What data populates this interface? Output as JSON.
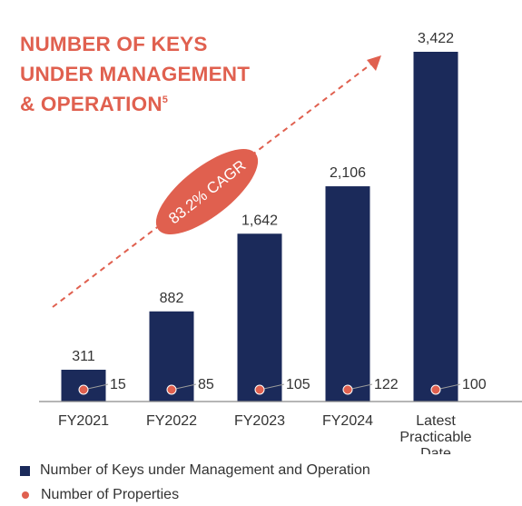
{
  "title": {
    "line1": "NUMBER OF KEYS",
    "line2": "UNDER MANAGEMENT",
    "line3": "& OPERATION",
    "footnote": "5"
  },
  "cagr_label": "83.2% CAGR",
  "colors": {
    "bar": "#1b2a5a",
    "accent": "#e0604f",
    "text": "#333333",
    "axis": "#8a8a8a"
  },
  "chart_data": {
    "type": "bar",
    "categories": [
      "FY2021",
      "FY2022",
      "FY2023",
      "FY2024",
      "Latest Practicable Date"
    ],
    "series": [
      {
        "name": "Number of Keys under Management and Operation",
        "values": [
          311,
          882,
          1642,
          2106,
          3422
        ],
        "labels": [
          "311",
          "882",
          "1,642",
          "2,106",
          "3,422"
        ]
      },
      {
        "name": "Number of Properties",
        "values": [
          15,
          85,
          105,
          122,
          100
        ]
      }
    ],
    "ylim": [
      0,
      3422
    ],
    "grid": false,
    "legend_position": "bottom-left"
  },
  "legend": {
    "keys": "Number of Keys under Management and Operation",
    "properties": "Number of Properties"
  }
}
